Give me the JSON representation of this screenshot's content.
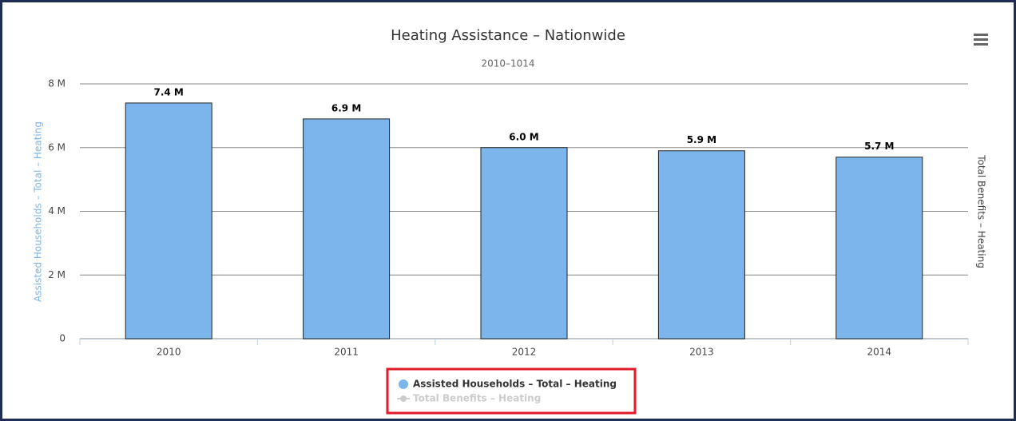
{
  "chart_data": {
    "type": "bar",
    "title": "Heating Assistance – Nationwide",
    "subtitle": "2010–1014",
    "y_axis_label": "Assisted Households – Total – Heating",
    "y2_axis_label": "Total Benefits – Heating",
    "categories": [
      "2010",
      "2011",
      "2012",
      "2013",
      "2014"
    ],
    "series": [
      {
        "name": "Assisted Households – Total – Heating",
        "color": "#7cb5ec",
        "values": [
          7.4,
          6.9,
          6.0,
          5.9,
          5.7
        ],
        "value_labels": [
          "7.4 M",
          "6.9 M",
          "6.0 M",
          "5.9 M",
          "5.7 M"
        ],
        "visible": true
      },
      {
        "name": "Total Benefits – Heating",
        "color": "#cccccc",
        "axis": "y2",
        "values": [
          null,
          null,
          null,
          null,
          null
        ],
        "visible": false
      }
    ],
    "ylim": [
      0,
      8
    ],
    "yticks": [
      0,
      {
        "value": 2,
        "label": "2 M"
      },
      {
        "value": 4,
        "label": "4 M"
      },
      {
        "value": 6,
        "label": "6 M"
      },
      {
        "value": 8,
        "label": "8 M"
      }
    ],
    "grid": true
  }
}
